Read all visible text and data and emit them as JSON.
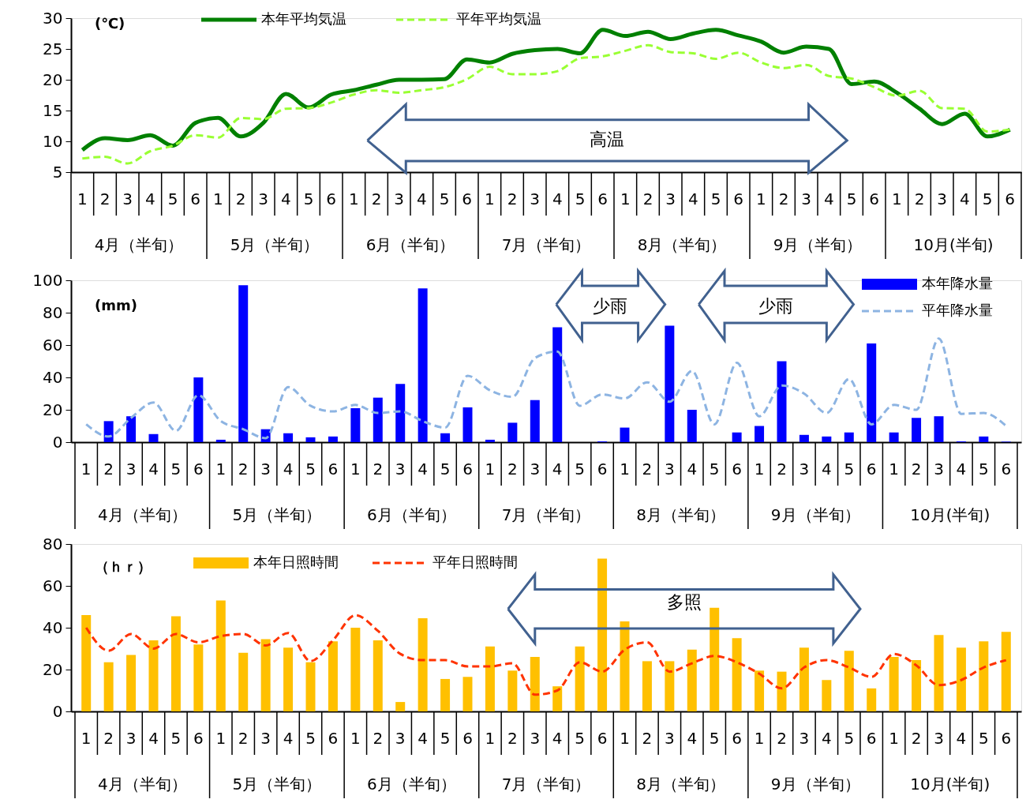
{
  "chart_data": [
    {
      "type": "line",
      "ylabel": "(℃)",
      "legend": "top",
      "ylim": [
        5,
        30
      ],
      "yticks": [
        5,
        10,
        15,
        20,
        25,
        30
      ],
      "categories": [
        "1",
        "2",
        "3",
        "4",
        "5",
        "6",
        "1",
        "2",
        "3",
        "4",
        "5",
        "6",
        "1",
        "2",
        "3",
        "4",
        "5",
        "6",
        "1",
        "2",
        "3",
        "4",
        "5",
        "6",
        "1",
        "2",
        "3",
        "4",
        "5",
        "6",
        "1",
        "2",
        "3",
        "4",
        "5",
        "6",
        "1",
        "2",
        "3",
        "4",
        "5",
        "6"
      ],
      "annotations": [
        "4月（半旬）",
        "5月（半旬）",
        "6月（半旬）",
        "7月（半旬）",
        "8月（半旬）",
        "9月（半旬）",
        "10月(半旬)",
        "高温"
      ],
      "series": [
        {
          "name": "本年平均気温",
          "line_style": "solid",
          "color": "#008000",
          "values": [
            8.6,
            10.5,
            10.2,
            11.0,
            9.3,
            13.0,
            13.8,
            10.8,
            13.0,
            17.7,
            15.5,
            17.6,
            18.3,
            19.2,
            20.0,
            20.0,
            20.1,
            23.3,
            22.8,
            24.2,
            24.8,
            25.0,
            24.3,
            28.1,
            27.1,
            27.8,
            26.6,
            27.5,
            28.1,
            27.2,
            26.2,
            24.4,
            25.4,
            25.0,
            19.3,
            19.7,
            17.9,
            15.3,
            12.8,
            14.5,
            10.8,
            11.9
          ]
        },
        {
          "name": "平年平均気温",
          "line_style": "dashed",
          "color": "#99ff33",
          "values": [
            7.2,
            7.5,
            6.4,
            8.4,
            9.3,
            11.0,
            10.6,
            13.8,
            13.6,
            15.3,
            15.4,
            16.3,
            17.6,
            18.3,
            17.9,
            18.3,
            18.8,
            20.1,
            22.1,
            20.9,
            20.9,
            21.4,
            23.5,
            23.8,
            24.7,
            25.6,
            24.5,
            24.3,
            23.4,
            24.4,
            22.8,
            21.9,
            22.4,
            20.6,
            20.2,
            18.8,
            17.4,
            18.2,
            15.4,
            15.3,
            11.6,
            11.9
          ]
        }
      ]
    },
    {
      "type": "bar",
      "ylabel": "(mm)",
      "legend": "top right",
      "ylim": [
        0,
        100
      ],
      "yticks": [
        0,
        20,
        40,
        60,
        80,
        100
      ],
      "categories": [
        "1",
        "2",
        "3",
        "4",
        "5",
        "6",
        "1",
        "2",
        "3",
        "4",
        "5",
        "6",
        "1",
        "2",
        "3",
        "4",
        "5",
        "6",
        "1",
        "2",
        "3",
        "4",
        "5",
        "6",
        "1",
        "2",
        "3",
        "4",
        "5",
        "6",
        "1",
        "2",
        "3",
        "4",
        "5",
        "6",
        "1",
        "2",
        "3",
        "4",
        "5",
        "6"
      ],
      "annotations": [
        "4月（半旬）",
        "5月（半旬）",
        "6月（半旬）",
        "7月（半旬）",
        "8月（半旬）",
        "9月（半旬）",
        "10月(半旬)",
        "少雨",
        "少雨"
      ],
      "series": [
        {
          "name": "本年降水量",
          "color": "#0000ff",
          "values": [
            0,
            13,
            16,
            5,
            0,
            40,
            1.5,
            97,
            8,
            5.5,
            3,
            3.5,
            21,
            27.5,
            36,
            95,
            5.5,
            21.5,
            1.5,
            12,
            26,
            71,
            0,
            0.5,
            9,
            0,
            72,
            20,
            0,
            6,
            10,
            50,
            4.5,
            3.5,
            6,
            61,
            6,
            15,
            16,
            0.5,
            3.5,
            0.3
          ]
        },
        {
          "name": "平年降水量",
          "type": "line",
          "line_style": "dashed",
          "color": "#8db4e2",
          "values": [
            11,
            3.5,
            15,
            24.5,
            7,
            29,
            13,
            8,
            2.5,
            34,
            22.5,
            19,
            23,
            18,
            19,
            13,
            9,
            41,
            32,
            28,
            52,
            56,
            22.5,
            29.5,
            27,
            37,
            25,
            44,
            11,
            49,
            16,
            35,
            30,
            18,
            39,
            11,
            23,
            20,
            64,
            17.5,
            18,
            10
          ]
        }
      ]
    },
    {
      "type": "bar",
      "ylabel": "（ｈｒ）",
      "legend": "top",
      "ylim": [
        0,
        80
      ],
      "yticks": [
        0,
        20,
        40,
        60,
        80
      ],
      "categories": [
        "1",
        "2",
        "3",
        "4",
        "5",
        "6",
        "1",
        "2",
        "3",
        "4",
        "5",
        "6",
        "1",
        "2",
        "3",
        "4",
        "5",
        "6",
        "1",
        "2",
        "3",
        "4",
        "5",
        "6",
        "1",
        "2",
        "3",
        "4",
        "5",
        "6",
        "1",
        "2",
        "3",
        "4",
        "5",
        "6",
        "1",
        "2",
        "3",
        "4",
        "5",
        "6"
      ],
      "annotations": [
        "4月（半旬）",
        "5月（半旬）",
        "6月（半旬）",
        "7月（半旬）",
        "8月（半旬）",
        "9月（半旬）",
        "10月(半旬)",
        "多照"
      ],
      "series": [
        {
          "name": "本年日照時間",
          "color": "#ffc000",
          "values": [
            46,
            23.5,
            27,
            34,
            45.5,
            32,
            53,
            28,
            34.5,
            30.5,
            23.5,
            33.5,
            40,
            34,
            4.5,
            44.5,
            15.5,
            16.5,
            31,
            19.5,
            26,
            12,
            31,
            73,
            43,
            24,
            24,
            29.5,
            49.5,
            35,
            19.5,
            19,
            30.5,
            15,
            29,
            11,
            26,
            24.5,
            36.5,
            30.5,
            33.5,
            38
          ]
        },
        {
          "name": "平年日照時間",
          "type": "line",
          "line_style": "dashed",
          "color": "#ff3300",
          "values": [
            40,
            29,
            37,
            30,
            37,
            33,
            36,
            37,
            31.5,
            37.5,
            24,
            34,
            46,
            38.5,
            27.5,
            24.5,
            24.5,
            21.5,
            21.5,
            23,
            8,
            10,
            23.5,
            19,
            29.5,
            33,
            19,
            23,
            26.5,
            23.5,
            18,
            11,
            21,
            24.5,
            21,
            16.5,
            27.5,
            22,
            12.5,
            15,
            21,
            24.5
          ]
        }
      ]
    }
  ]
}
